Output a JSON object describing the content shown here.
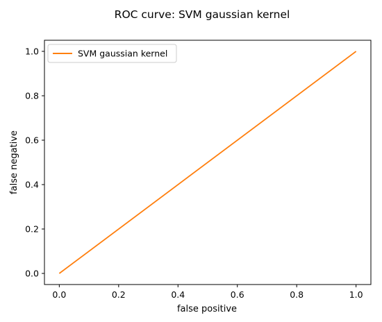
{
  "chart_data": {
    "type": "line",
    "title": "ROC curve: SVM gaussian kernel",
    "xlabel": "false positive",
    "ylabel": "false negative",
    "xlim": [
      -0.05,
      1.05
    ],
    "ylim": [
      -0.05,
      1.05
    ],
    "xticks": [
      0.0,
      0.2,
      0.4,
      0.6,
      0.8,
      1.0
    ],
    "yticks": [
      0.0,
      0.2,
      0.4,
      0.6,
      0.8,
      1.0
    ],
    "tick_labels": [
      "0.0",
      "0.2",
      "0.4",
      "0.6",
      "0.8",
      "1.0"
    ],
    "grid": false,
    "legend_position": "upper-left",
    "series": [
      {
        "name": "SVM gaussian kernel",
        "color": "#ff7f0e",
        "x": [
          0.0,
          1.0
        ],
        "y": [
          0.0,
          1.0
        ]
      }
    ]
  }
}
